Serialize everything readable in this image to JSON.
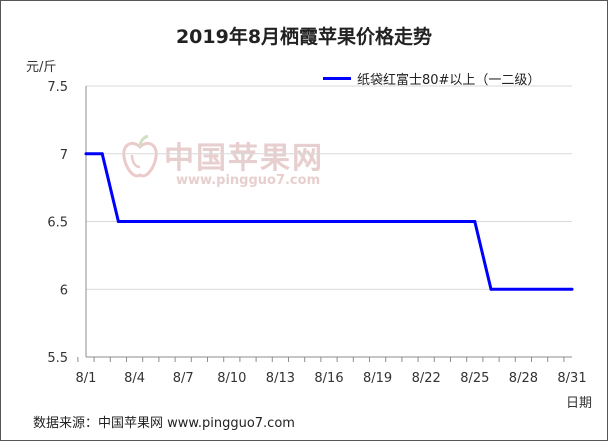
{
  "chart_data": {
    "type": "line",
    "title": "2019年8月栖霞苹果价格走势",
    "ylabel": "元/斤",
    "xlabel": "日期",
    "x_ticks": [
      "8/1",
      "8/4",
      "8/7",
      "8/10",
      "8/13",
      "8/16",
      "8/19",
      "8/22",
      "8/25",
      "8/28",
      "8/31"
    ],
    "y_ticks": [
      "7.5",
      "7",
      "6.5",
      "6",
      "5.5"
    ],
    "ylim": [
      5.5,
      7.5
    ],
    "xlim": [
      1,
      31
    ],
    "grid": "horizontal",
    "legend_position": "top-right",
    "series": [
      {
        "name": "纸袋红富士80#以上（一二级）",
        "color": "#0000ff",
        "points": [
          {
            "x": "8/1",
            "y": 7.0
          },
          {
            "x": "8/2",
            "y": 7.0
          },
          {
            "x": "8/3",
            "y": 6.5
          },
          {
            "x": "8/4",
            "y": 6.5
          },
          {
            "x": "8/24",
            "y": 6.5
          },
          {
            "x": "8/25",
            "y": 6.5
          },
          {
            "x": "8/26",
            "y": 6.0
          },
          {
            "x": "8/31",
            "y": 6.0
          }
        ]
      }
    ]
  },
  "source": "数据来源：中国苹果网 www.pingguo7.com",
  "watermark": {
    "text": "中国苹果网",
    "url": "www.pingguo7.com",
    "icon": "apple-logo-icon"
  }
}
